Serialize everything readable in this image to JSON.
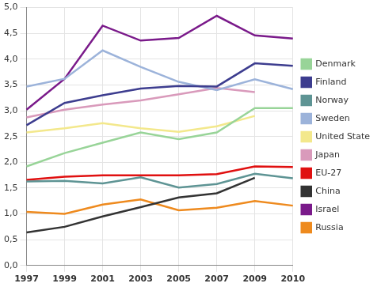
{
  "chart_data": {
    "type": "line",
    "categories": [
      "1997",
      "1999",
      "2001",
      "2003",
      "2005",
      "2007",
      "2009",
      "2010"
    ],
    "series": [
      {
        "name": "Denmark",
        "color": "#98d498",
        "values": [
          1.92,
          2.18,
          2.38,
          2.58,
          2.45,
          2.58,
          3.05,
          3.05
        ]
      },
      {
        "name": "Finland",
        "color": "#3d3d8f",
        "values": [
          2.72,
          3.15,
          3.3,
          3.43,
          3.48,
          3.47,
          3.92,
          3.87
        ]
      },
      {
        "name": "Norway",
        "color": "#5e9494",
        "values": [
          1.63,
          1.64,
          1.59,
          1.71,
          1.51,
          1.58,
          1.78,
          1.69
        ]
      },
      {
        "name": "Sweden",
        "color": "#9cb3da",
        "values": [
          3.47,
          3.62,
          4.17,
          3.85,
          3.56,
          3.4,
          3.61,
          3.42
        ]
      },
      {
        "name": "United State",
        "color": "#f3e88c",
        "values": [
          2.58,
          2.66,
          2.76,
          2.66,
          2.59,
          2.7,
          2.9,
          null
        ]
      },
      {
        "name": "Japan",
        "color": "#d99abb",
        "values": [
          2.87,
          3.02,
          3.12,
          3.2,
          3.32,
          3.44,
          3.36,
          null
        ]
      },
      {
        "name": "EU-27",
        "color": "#e01010",
        "values": [
          1.66,
          1.72,
          1.75,
          1.75,
          1.75,
          1.77,
          1.92,
          1.91
        ]
      },
      {
        "name": "China",
        "color": "#333333",
        "values": [
          0.64,
          0.75,
          0.95,
          1.13,
          1.32,
          1.4,
          1.7,
          null
        ]
      },
      {
        "name": "Israel",
        "color": "#7a1a8a",
        "values": [
          3.02,
          3.62,
          4.65,
          4.36,
          4.41,
          4.84,
          4.46,
          4.4
        ]
      },
      {
        "name": "Russia",
        "color": "#ee8a1e",
        "values": [
          1.04,
          1.0,
          1.18,
          1.28,
          1.07,
          1.12,
          1.25,
          1.16
        ]
      }
    ],
    "ylim": [
      0,
      5
    ],
    "yticks": [
      {
        "value": 0,
        "label": "0,0"
      },
      {
        "value": 0.5,
        "label": "0,5"
      },
      {
        "value": 1,
        "label": "1,0"
      },
      {
        "value": 1.5,
        "label": "1,5"
      },
      {
        "value": 2,
        "label": "2,0"
      },
      {
        "value": 2.5,
        "label": "2,5"
      },
      {
        "value": 3,
        "label": "3,0"
      },
      {
        "value": 3.5,
        "label": "3,5"
      },
      {
        "value": 4,
        "label": "4,0"
      },
      {
        "value": 4.5,
        "label": "4,5"
      },
      {
        "value": 5,
        "label": "5,0"
      }
    ],
    "grid": true,
    "legend": "right"
  }
}
